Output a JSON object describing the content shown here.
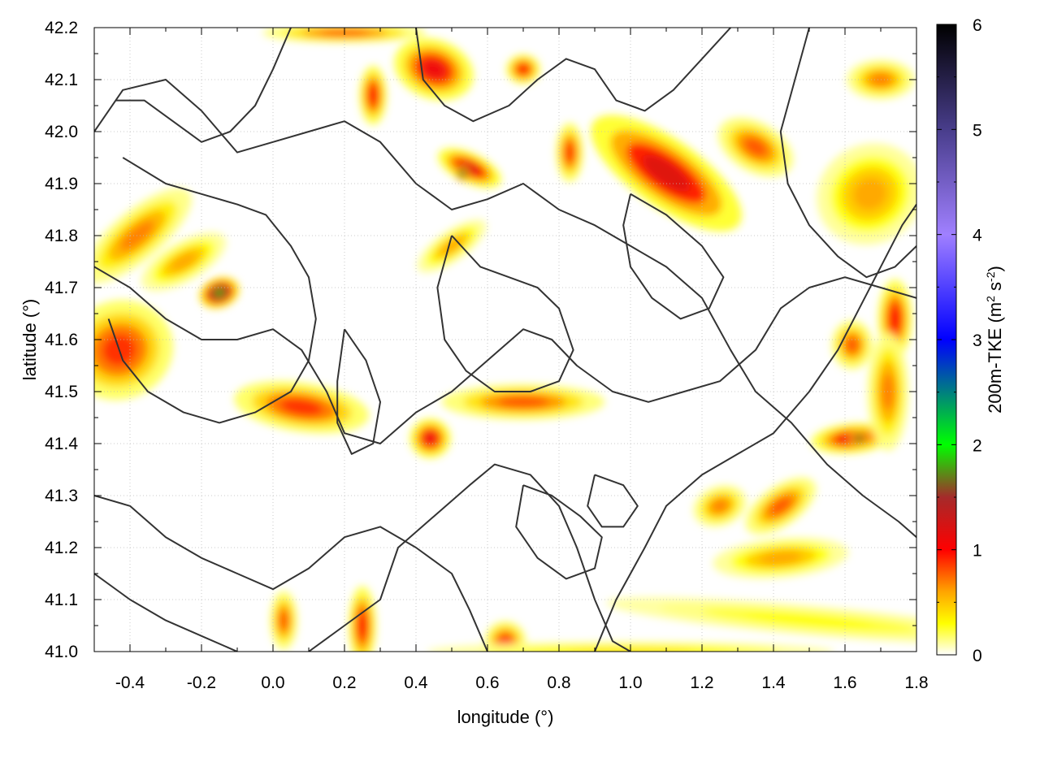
{
  "chart_data": {
    "type": "heatmap",
    "xlabel": "longitude (°)",
    "ylabel": "latitude (°)",
    "colorbar_label": "200m-TKE (m² s⁻²)",
    "colorbar_label_parts": {
      "base": "200m-TKE (m",
      "sup1": "2",
      "mid": " s",
      "sup2": "-2",
      "end": ")"
    },
    "xlim": [
      -0.5,
      1.8
    ],
    "ylim": [
      41.0,
      42.2
    ],
    "clim": [
      0,
      6
    ],
    "x_ticks": [
      "-0.4",
      "-0.2",
      "0.0",
      "0.2",
      "0.4",
      "0.6",
      "0.8",
      "1.0",
      "1.2",
      "1.4",
      "1.6",
      "1.8"
    ],
    "x_tick_values": [
      -0.4,
      -0.2,
      0.0,
      0.2,
      0.4,
      0.6,
      0.8,
      1.0,
      1.2,
      1.4,
      1.6,
      1.8
    ],
    "y_ticks": [
      "41.0",
      "41.1",
      "41.2",
      "41.3",
      "41.4",
      "41.5",
      "41.6",
      "41.7",
      "41.8",
      "41.9",
      "42.0",
      "42.1",
      "42.2"
    ],
    "y_tick_values": [
      41.0,
      41.1,
      41.2,
      41.3,
      41.4,
      41.5,
      41.6,
      41.7,
      41.8,
      41.9,
      42.0,
      42.1,
      42.2
    ],
    "colorbar_ticks": [
      "0",
      "1",
      "2",
      "3",
      "4",
      "5",
      "6"
    ],
    "colorbar_tick_values": [
      0,
      1,
      2,
      3,
      4,
      5,
      6
    ],
    "colormap": [
      {
        "v": 0.0,
        "color": "#ffffff"
      },
      {
        "v": 0.3,
        "color": "#ffff00"
      },
      {
        "v": 0.6,
        "color": "#ffa500"
      },
      {
        "v": 1.0,
        "color": "#ff0000"
      },
      {
        "v": 1.5,
        "color": "#a52a2a"
      },
      {
        "v": 2.0,
        "color": "#00ff00"
      },
      {
        "v": 3.0,
        "color": "#0000ff"
      },
      {
        "v": 4.0,
        "color": "#a080ff"
      },
      {
        "v": 5.0,
        "color": "#483d8b"
      },
      {
        "v": 6.0,
        "color": "#000000"
      }
    ],
    "grid": true,
    "contour_color": "#333333",
    "tke_features": [
      {
        "lon": 0.45,
        "lat": 42.12,
        "rlon": 0.06,
        "rlat": 0.03,
        "ang": 20,
        "v": 1.1
      },
      {
        "lon": 0.28,
        "lat": 42.07,
        "rlon": 0.02,
        "rlat": 0.03,
        "ang": 0,
        "v": 1.0
      },
      {
        "lon": 0.55,
        "lat": 41.93,
        "rlon": 0.05,
        "rlat": 0.015,
        "ang": 25,
        "v": 1.2
      },
      {
        "lon": 0.53,
        "lat": 41.92,
        "rlon": 0.01,
        "rlat": 0.008,
        "ang": 0,
        "v": 2.2
      },
      {
        "lon": 0.7,
        "lat": 42.12,
        "rlon": 0.025,
        "rlat": 0.015,
        "ang": 0,
        "v": 1.0
      },
      {
        "lon": 0.83,
        "lat": 41.96,
        "rlon": 0.02,
        "rlat": 0.03,
        "ang": 0,
        "v": 0.9
      },
      {
        "lon": 1.1,
        "lat": 41.92,
        "rlon": 0.05,
        "rlat": 0.09,
        "ang": -55,
        "v": 1.2
      },
      {
        "lon": 1.35,
        "lat": 41.97,
        "rlon": 0.06,
        "rlat": 0.025,
        "ang": 30,
        "v": 0.8
      },
      {
        "lon": 1.67,
        "lat": 41.88,
        "rlon": 0.08,
        "rlat": 0.05,
        "ang": -30,
        "v": 0.6
      },
      {
        "lon": 1.7,
        "lat": 42.1,
        "rlon": 0.05,
        "rlat": 0.02,
        "ang": 0,
        "v": 0.7
      },
      {
        "lon": -0.43,
        "lat": 41.58,
        "rlon": 0.08,
        "rlat": 0.05,
        "ang": -20,
        "v": 0.9
      },
      {
        "lon": -0.38,
        "lat": 41.8,
        "rlon": 0.1,
        "rlat": 0.025,
        "ang": -40,
        "v": 0.7
      },
      {
        "lon": -0.15,
        "lat": 41.69,
        "rlon": 0.03,
        "rlat": 0.015,
        "ang": -20,
        "v": 1.8
      },
      {
        "lon": -0.25,
        "lat": 41.75,
        "rlon": 0.07,
        "rlat": 0.02,
        "ang": -30,
        "v": 0.6
      },
      {
        "lon": 0.08,
        "lat": 41.47,
        "rlon": 0.1,
        "rlat": 0.025,
        "ang": 8,
        "v": 0.9
      },
      {
        "lon": 0.44,
        "lat": 41.41,
        "rlon": 0.03,
        "rlat": 0.02,
        "ang": 0,
        "v": 1.1
      },
      {
        "lon": 0.7,
        "lat": 41.48,
        "rlon": 0.12,
        "rlat": 0.018,
        "ang": 0,
        "v": 0.8
      },
      {
        "lon": 0.5,
        "lat": 41.78,
        "rlon": 0.06,
        "rlat": 0.015,
        "ang": -35,
        "v": 0.6
      },
      {
        "lon": 1.62,
        "lat": 41.41,
        "rlon": 0.06,
        "rlat": 0.015,
        "ang": -5,
        "v": 1.1
      },
      {
        "lon": 1.64,
        "lat": 41.41,
        "rlon": 0.015,
        "rlat": 0.008,
        "ang": 0,
        "v": 1.9
      },
      {
        "lon": 1.74,
        "lat": 41.64,
        "rlon": 0.025,
        "rlat": 0.04,
        "ang": 0,
        "v": 1.0
      },
      {
        "lon": 1.62,
        "lat": 41.59,
        "rlon": 0.03,
        "rlat": 0.025,
        "ang": 0,
        "v": 0.8
      },
      {
        "lon": 1.42,
        "lat": 41.28,
        "rlon": 0.06,
        "rlat": 0.02,
        "ang": -35,
        "v": 0.8
      },
      {
        "lon": 1.25,
        "lat": 41.28,
        "rlon": 0.04,
        "rlat": 0.02,
        "ang": -20,
        "v": 0.7
      },
      {
        "lon": 1.42,
        "lat": 41.18,
        "rlon": 0.1,
        "rlat": 0.02,
        "ang": -5,
        "v": 0.6
      },
      {
        "lon": 0.25,
        "lat": 41.05,
        "rlon": 0.02,
        "rlat": 0.04,
        "ang": 0,
        "v": 1.0
      },
      {
        "lon": 0.03,
        "lat": 41.06,
        "rlon": 0.02,
        "rlat": 0.03,
        "ang": 0,
        "v": 0.8
      },
      {
        "lon": 0.65,
        "lat": 41.02,
        "rlon": 0.03,
        "rlat": 0.02,
        "ang": 0,
        "v": 0.9
      },
      {
        "lon": 0.2,
        "lat": 42.19,
        "rlon": 0.12,
        "rlat": 0.01,
        "ang": 0,
        "v": 0.8
      },
      {
        "lon": 1.5,
        "lat": 41.06,
        "rlon": 0.3,
        "rlat": 0.015,
        "ang": 5,
        "v": 0.3
      },
      {
        "lon": 1.0,
        "lat": 41.0,
        "rlon": 0.3,
        "rlat": 0.01,
        "ang": 0,
        "v": 0.4
      },
      {
        "lon": 1.72,
        "lat": 41.5,
        "rlon": 0.03,
        "rlat": 0.06,
        "ang": 0,
        "v": 0.7
      }
    ],
    "contours": [
      [
        [
          -0.5,
          42.0
        ],
        [
          -0.42,
          42.08
        ],
        [
          -0.3,
          42.1
        ],
        [
          -0.2,
          42.04
        ],
        [
          -0.1,
          41.96
        ],
        [
          0.0,
          41.98
        ],
        [
          0.1,
          42.0
        ],
        [
          0.2,
          42.02
        ],
        [
          0.3,
          41.98
        ],
        [
          0.4,
          41.9
        ],
        [
          0.5,
          41.85
        ],
        [
          0.6,
          41.87
        ],
        [
          0.7,
          41.9
        ],
        [
          0.8,
          41.85
        ],
        [
          0.9,
          41.82
        ],
        [
          1.0,
          41.78
        ],
        [
          1.1,
          41.74
        ],
        [
          1.2,
          41.68
        ],
        [
          1.28,
          41.58
        ],
        [
          1.35,
          41.5
        ],
        [
          1.45,
          41.44
        ],
        [
          1.55,
          41.36
        ],
        [
          1.65,
          41.3
        ],
        [
          1.75,
          41.25
        ],
        [
          1.8,
          41.22
        ]
      ],
      [
        [
          -0.5,
          41.74
        ],
        [
          -0.4,
          41.7
        ],
        [
          -0.3,
          41.64
        ],
        [
          -0.2,
          41.6
        ],
        [
          -0.1,
          41.6
        ],
        [
          0.0,
          41.62
        ],
        [
          0.08,
          41.58
        ],
        [
          0.15,
          41.5
        ],
        [
          0.2,
          41.42
        ],
        [
          0.3,
          41.4
        ],
        [
          0.4,
          41.46
        ],
        [
          0.5,
          41.5
        ],
        [
          0.6,
          41.56
        ],
        [
          0.7,
          41.62
        ],
        [
          0.78,
          41.6
        ],
        [
          0.85,
          41.55
        ],
        [
          0.95,
          41.5
        ],
        [
          1.05,
          41.48
        ],
        [
          1.15,
          41.5
        ],
        [
          1.25,
          41.52
        ],
        [
          1.35,
          41.58
        ],
        [
          1.42,
          41.66
        ],
        [
          1.5,
          41.7
        ],
        [
          1.6,
          41.72
        ],
        [
          1.7,
          41.7
        ],
        [
          1.8,
          41.68
        ]
      ],
      [
        [
          -0.5,
          41.3
        ],
        [
          -0.4,
          41.28
        ],
        [
          -0.3,
          41.22
        ],
        [
          -0.2,
          41.18
        ],
        [
          -0.1,
          41.15
        ],
        [
          0.0,
          41.12
        ],
        [
          0.1,
          41.16
        ],
        [
          0.2,
          41.22
        ],
        [
          0.3,
          41.24
        ],
        [
          0.4,
          41.2
        ],
        [
          0.5,
          41.15
        ],
        [
          0.55,
          41.08
        ],
        [
          0.6,
          41.0
        ]
      ],
      [
        [
          -0.5,
          41.15
        ],
        [
          -0.4,
          41.1
        ],
        [
          -0.3,
          41.06
        ],
        [
          -0.2,
          41.03
        ],
        [
          -0.1,
          41.0
        ]
      ],
      [
        [
          0.1,
          41.0
        ],
        [
          0.2,
          41.05
        ],
        [
          0.3,
          41.1
        ],
        [
          0.35,
          41.2
        ],
        [
          0.45,
          41.26
        ],
        [
          0.55,
          41.32
        ],
        [
          0.62,
          41.36
        ],
        [
          0.72,
          41.34
        ],
        [
          0.8,
          41.28
        ],
        [
          0.85,
          41.2
        ],
        [
          0.9,
          41.1
        ],
        [
          0.95,
          41.02
        ],
        [
          1.0,
          41.0
        ]
      ],
      [
        [
          0.9,
          41.0
        ],
        [
          0.96,
          41.1
        ],
        [
          1.04,
          41.2
        ],
        [
          1.1,
          41.28
        ],
        [
          1.2,
          41.34
        ],
        [
          1.3,
          41.38
        ],
        [
          1.4,
          41.42
        ],
        [
          1.5,
          41.5
        ],
        [
          1.58,
          41.58
        ],
        [
          1.64,
          41.66
        ],
        [
          1.7,
          41.74
        ],
        [
          1.76,
          41.82
        ],
        [
          1.8,
          41.86
        ]
      ],
      [
        [
          0.4,
          42.2
        ],
        [
          0.42,
          42.1
        ],
        [
          0.48,
          42.05
        ],
        [
          0.56,
          42.02
        ],
        [
          0.66,
          42.05
        ],
        [
          0.74,
          42.1
        ],
        [
          0.82,
          42.14
        ],
        [
          0.9,
          42.12
        ],
        [
          0.96,
          42.06
        ],
        [
          1.04,
          42.04
        ],
        [
          1.12,
          42.08
        ],
        [
          1.2,
          42.14
        ],
        [
          1.28,
          42.2
        ]
      ],
      [
        [
          1.5,
          42.2
        ],
        [
          1.46,
          42.1
        ],
        [
          1.42,
          42.0
        ],
        [
          1.44,
          41.9
        ],
        [
          1.5,
          41.82
        ],
        [
          1.58,
          41.76
        ],
        [
          1.66,
          41.72
        ],
        [
          1.74,
          41.74
        ],
        [
          1.8,
          41.78
        ]
      ],
      [
        [
          -0.42,
          41.95
        ],
        [
          -0.3,
          41.9
        ],
        [
          -0.2,
          41.88
        ],
        [
          -0.1,
          41.86
        ],
        [
          -0.02,
          41.84
        ],
        [
          0.05,
          41.78
        ],
        [
          0.1,
          41.72
        ],
        [
          0.12,
          41.64
        ],
        [
          0.1,
          41.56
        ],
        [
          0.05,
          41.5
        ],
        [
          -0.05,
          41.46
        ],
        [
          -0.15,
          41.44
        ],
        [
          -0.25,
          41.46
        ],
        [
          -0.35,
          41.5
        ],
        [
          -0.42,
          41.56
        ],
        [
          -0.46,
          41.64
        ]
      ],
      [
        [
          0.2,
          41.62
        ],
        [
          0.26,
          41.56
        ],
        [
          0.3,
          41.48
        ],
        [
          0.28,
          41.4
        ],
        [
          0.22,
          41.38
        ],
        [
          0.18,
          41.44
        ],
        [
          0.18,
          41.52
        ],
        [
          0.2,
          41.62
        ]
      ],
      [
        [
          0.5,
          41.8
        ],
        [
          0.58,
          41.74
        ],
        [
          0.66,
          41.72
        ],
        [
          0.74,
          41.7
        ],
        [
          0.8,
          41.66
        ],
        [
          0.84,
          41.58
        ],
        [
          0.8,
          41.52
        ],
        [
          0.72,
          41.5
        ],
        [
          0.62,
          41.5
        ],
        [
          0.54,
          41.54
        ],
        [
          0.48,
          41.6
        ],
        [
          0.46,
          41.7
        ],
        [
          0.5,
          41.8
        ]
      ],
      [
        [
          1.0,
          41.88
        ],
        [
          1.1,
          41.84
        ],
        [
          1.2,
          41.78
        ],
        [
          1.26,
          41.72
        ],
        [
          1.22,
          41.66
        ],
        [
          1.14,
          41.64
        ],
        [
          1.06,
          41.68
        ],
        [
          1.0,
          41.74
        ],
        [
          0.98,
          41.82
        ],
        [
          1.0,
          41.88
        ]
      ],
      [
        [
          0.7,
          41.32
        ],
        [
          0.78,
          41.3
        ],
        [
          0.86,
          41.26
        ],
        [
          0.92,
          41.22
        ],
        [
          0.9,
          41.16
        ],
        [
          0.82,
          41.14
        ],
        [
          0.74,
          41.18
        ],
        [
          0.68,
          41.24
        ],
        [
          0.7,
          41.32
        ]
      ],
      [
        [
          0.9,
          41.34
        ],
        [
          0.98,
          41.32
        ],
        [
          1.02,
          41.28
        ],
        [
          0.98,
          41.24
        ],
        [
          0.92,
          41.24
        ],
        [
          0.88,
          41.28
        ],
        [
          0.9,
          41.34
        ]
      ],
      [
        [
          0.05,
          42.2
        ],
        [
          0.0,
          42.12
        ],
        [
          -0.05,
          42.05
        ],
        [
          -0.12,
          42.0
        ],
        [
          -0.2,
          41.98
        ],
        [
          -0.28,
          42.02
        ],
        [
          -0.36,
          42.06
        ],
        [
          -0.44,
          42.06
        ]
      ]
    ]
  }
}
